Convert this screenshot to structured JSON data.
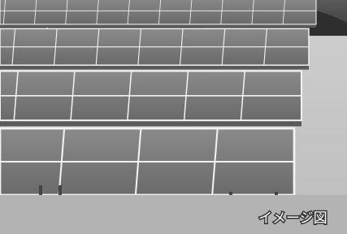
{
  "caption": "イメージ図"
}
